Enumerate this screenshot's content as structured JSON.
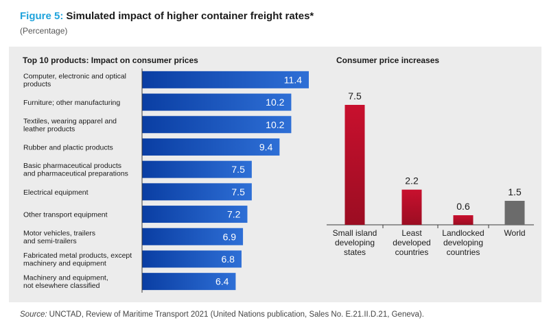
{
  "figure": {
    "number": "Figure 5:",
    "title": "Simulated impact of higher container freight rates*",
    "subtitle": "(Percentage)"
  },
  "source": {
    "label": "Source:",
    "text": "UNCTAD, Review of Maritime Transport 2021 (United Nations publication, Sales No. E.21.II.D.21, Geneva)."
  },
  "colors": {
    "bar_blue_dark": "#0a3ea3",
    "bar_blue_light": "#2e6fd6",
    "bar_red": "#c8102e",
    "bar_red_dark": "#9b0d22",
    "bar_gray": "#6b6b6b",
    "panel_bg": "#ececec"
  },
  "chart_data": [
    {
      "type": "bar",
      "orientation": "horizontal",
      "title": "Top 10 products: Impact on consumer prices",
      "categories": [
        [
          "Computer, electronic and optical",
          "products"
        ],
        [
          "Furniture; other manufacturing"
        ],
        [
          "Textiles, wearing apparel and",
          "leather products"
        ],
        [
          "Rubber and plactic products"
        ],
        [
          "Basic pharmaceutical products",
          "and pharmaceutical preparations"
        ],
        [
          "Electrical equipment"
        ],
        [
          "Other transport equipment"
        ],
        [
          "Motor vehicles, trailers",
          "and semi-trailers"
        ],
        [
          "Fabricated metal products, except",
          "machinery and equipment"
        ],
        [
          "Machinery and equipment,",
          "not elsewhere classified"
        ]
      ],
      "values": [
        11.4,
        10.2,
        10.2,
        9.4,
        7.5,
        7.5,
        7.2,
        6.9,
        6.8,
        6.4
      ],
      "labels": [
        "11.4",
        "10.2",
        "10.2",
        "9.4",
        "7.5",
        "7.5",
        "7.2",
        "6.9",
        "6.8",
        "6.4"
      ],
      "xlim": [
        0,
        12
      ],
      "xlabel": "",
      "ylabel": "",
      "grid": false
    },
    {
      "type": "bar",
      "orientation": "vertical",
      "title": "Consumer price increases",
      "categories": [
        [
          "Small island",
          "developing",
          "states"
        ],
        [
          "Least",
          "developed",
          "countries"
        ],
        [
          "Landlocked",
          "developing",
          "countries"
        ],
        [
          "World"
        ]
      ],
      "values": [
        7.5,
        2.2,
        0.6,
        1.5
      ],
      "labels": [
        "7.5",
        "2.2",
        "0.6",
        "1.5"
      ],
      "ylim": [
        0,
        7.5
      ],
      "xlabel": "",
      "ylabel": "",
      "grid": false
    }
  ]
}
